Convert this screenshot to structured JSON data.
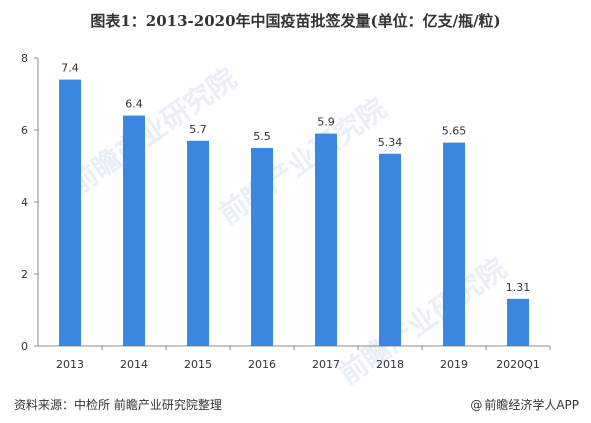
{
  "title": "图表1：2013-2020年中国疫苗批签发量(单位：亿支/瓶/粒)",
  "chart_data": {
    "type": "bar",
    "categories": [
      "2013",
      "2014",
      "2015",
      "2016",
      "2017",
      "2018",
      "2019",
      "2020Q1"
    ],
    "values": [
      7.4,
      6.4,
      5.7,
      5.5,
      5.9,
      5.34,
      5.65,
      1.31
    ],
    "value_labels": [
      "7.4",
      "6.4",
      "5.7",
      "5.5",
      "5.9",
      "5.34",
      "5.65",
      "1.31"
    ],
    "ylim": [
      0,
      8
    ],
    "yticks": [
      0,
      2,
      4,
      6,
      8
    ],
    "bar_color": "#3b86e0",
    "grid": false,
    "legend": "none"
  },
  "footer": {
    "source": "资料来源：中检所 前瞻产业研究院整理",
    "brand": "前瞻经济学人APP",
    "brand_at": "@"
  },
  "watermark_text": "前瞻产业研究院"
}
